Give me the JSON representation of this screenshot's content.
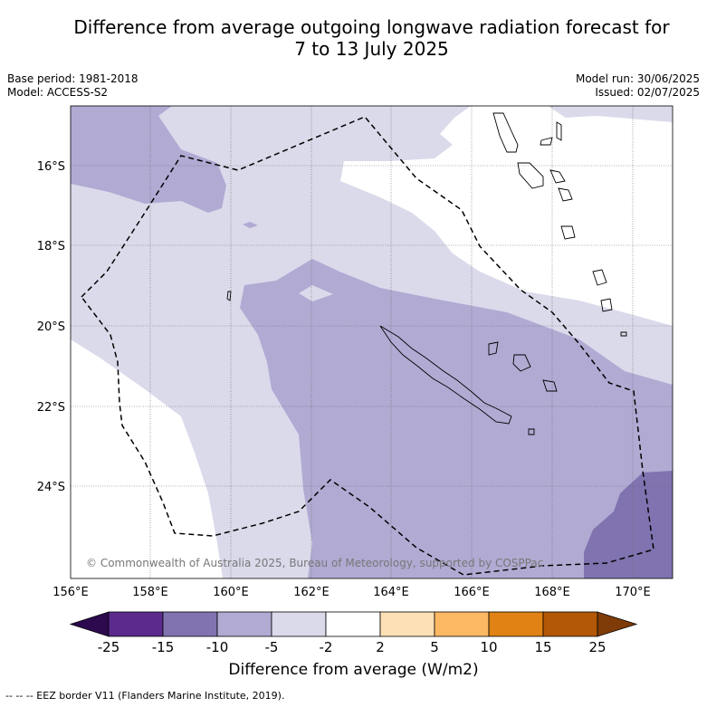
{
  "header": {
    "title": "Difference from average outgoing longwave radiation forecast for\n7 to 13 July 2025",
    "base_period": "Base period: 1981-2018",
    "model": "Model: ACCESS-S2",
    "model_run": "Model run: 30/06/2025",
    "issued": "Issued: 02/07/2025"
  },
  "map": {
    "lon_ticks": [
      "156°E",
      "158°E",
      "160°E",
      "162°E",
      "164°E",
      "166°E",
      "168°E",
      "170°E"
    ],
    "lat_ticks": [
      "16°S",
      "18°S",
      "20°S",
      "22°S",
      "24°S"
    ],
    "copyright": "© Commonwealth of Australia 2025, Bureau of Meteorology, supported by COSPPac"
  },
  "colorbar": {
    "ticks": [
      "-25",
      "-15",
      "-10",
      "-5",
      "-2",
      "2",
      "5",
      "10",
      "15",
      "25"
    ],
    "colors": [
      "#2d0a4e",
      "#5b2a8c",
      "#8073b0",
      "#b1aad3",
      "#dadaeb",
      "#ffffff",
      "#fee0b6",
      "#fdb863",
      "#e08214",
      "#b35806",
      "#7f3b08"
    ],
    "label": "Difference from average (W/m2)"
  },
  "footer": {
    "legend_text": "--  --  -- EEZ border V11 (Flanders Marine Institute, 2019)."
  }
}
